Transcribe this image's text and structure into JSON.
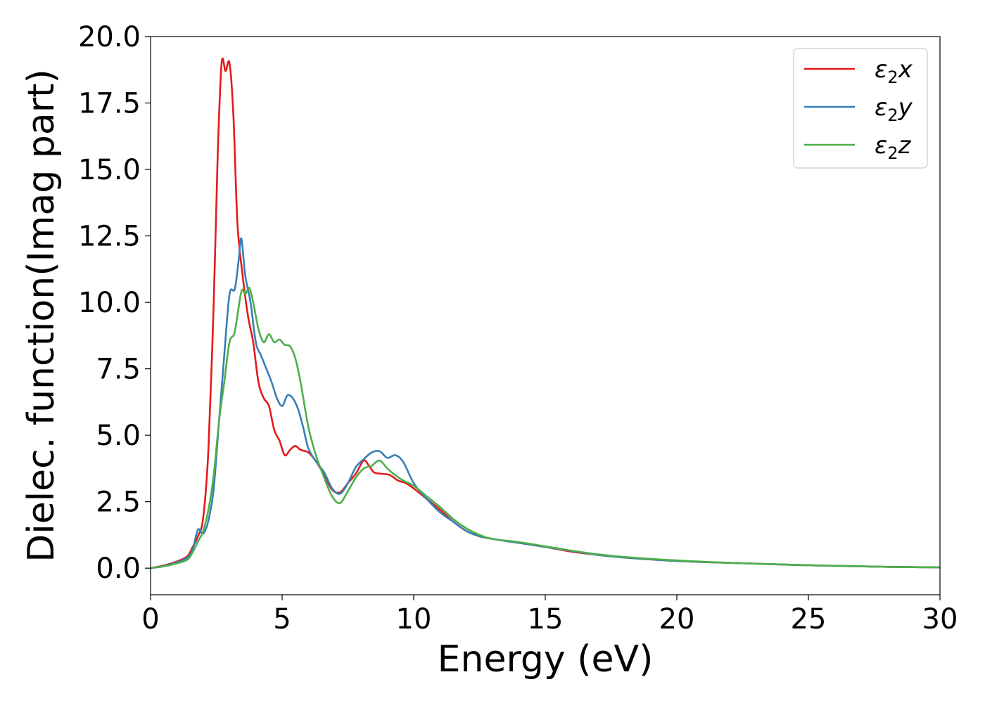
{
  "chart_data": {
    "type": "line",
    "xlabel": "Energy (eV)",
    "ylabel": "Dielec. function(Imag part)",
    "xlim": [
      0,
      30
    ],
    "ylim": [
      -1,
      20
    ],
    "xticks": [
      "0",
      "5",
      "10",
      "15",
      "20",
      "25",
      "30"
    ],
    "yticks": [
      "0.0",
      "2.5",
      "5.0",
      "7.5",
      "10.0",
      "12.5",
      "15.0",
      "17.5",
      "20.0"
    ],
    "grid": false,
    "legend_position": "top-right",
    "series": [
      {
        "name": "ε₂x",
        "legend": {
          "base": "ε",
          "sub": "2",
          "suffix": "x"
        },
        "color": "#e41a1c",
        "x": [
          0,
          0.5,
          1.0,
          1.4,
          1.6,
          1.8,
          2.0,
          2.2,
          2.4,
          2.55,
          2.7,
          2.85,
          3.0,
          3.15,
          3.3,
          3.5,
          3.7,
          3.9,
          4.1,
          4.3,
          4.5,
          4.7,
          4.9,
          5.1,
          5.3,
          5.5,
          5.7,
          6.0,
          6.3,
          6.6,
          6.9,
          7.2,
          7.5,
          7.8,
          8.1,
          8.3,
          8.5,
          8.8,
          9.1,
          9.4,
          9.7,
          10.0,
          10.5,
          11.0,
          11.5,
          12.0,
          12.5,
          13.0,
          14.0,
          15.0,
          16.0,
          17.0,
          18.0,
          20.0,
          22.0,
          25.0,
          28.0,
          30.0
        ],
        "y": [
          0.0,
          0.1,
          0.25,
          0.45,
          0.8,
          1.2,
          1.9,
          4.5,
          10.0,
          15.5,
          19.0,
          18.7,
          19.0,
          17.0,
          13.0,
          11.0,
          9.5,
          8.5,
          7.0,
          6.4,
          6.1,
          5.2,
          4.8,
          4.25,
          4.45,
          4.6,
          4.45,
          4.35,
          4.0,
          3.5,
          2.95,
          2.85,
          3.2,
          3.55,
          4.05,
          3.85,
          3.6,
          3.55,
          3.5,
          3.3,
          3.2,
          3.0,
          2.6,
          2.2,
          1.75,
          1.4,
          1.2,
          1.1,
          0.95,
          0.8,
          0.62,
          0.5,
          0.4,
          0.27,
          0.2,
          0.11,
          0.05,
          0.03
        ]
      },
      {
        "name": "ε₂y",
        "legend": {
          "base": "ε",
          "sub": "2",
          "suffix": "y"
        },
        "color": "#377eb8",
        "x": [
          0,
          0.5,
          1.0,
          1.4,
          1.6,
          1.8,
          2.0,
          2.2,
          2.4,
          2.6,
          2.8,
          3.0,
          3.2,
          3.35,
          3.45,
          3.6,
          3.8,
          4.0,
          4.2,
          4.4,
          4.6,
          4.8,
          5.0,
          5.2,
          5.4,
          5.6,
          5.8,
          6.0,
          6.3,
          6.6,
          6.9,
          7.2,
          7.5,
          7.8,
          8.1,
          8.4,
          8.7,
          9.0,
          9.3,
          9.6,
          10.0,
          10.5,
          11.0,
          11.5,
          12.0,
          12.5,
          13.0,
          14.0,
          15.0,
          16.0,
          17.0,
          18.0,
          20.0,
          22.0,
          25.0,
          28.0,
          30.0
        ],
        "y": [
          0.0,
          0.08,
          0.22,
          0.4,
          0.7,
          1.45,
          1.3,
          1.8,
          3.0,
          5.5,
          8.0,
          10.3,
          10.5,
          11.6,
          12.4,
          11.0,
          10.0,
          8.5,
          8.0,
          7.5,
          7.0,
          6.4,
          6.1,
          6.5,
          6.4,
          6.0,
          5.3,
          4.5,
          4.0,
          3.6,
          3.0,
          2.8,
          3.2,
          3.8,
          4.1,
          4.35,
          4.4,
          4.15,
          4.25,
          4.0,
          3.2,
          2.6,
          2.1,
          1.75,
          1.4,
          1.2,
          1.1,
          0.95,
          0.8,
          0.65,
          0.5,
          0.4,
          0.27,
          0.2,
          0.11,
          0.05,
          0.03
        ]
      },
      {
        "name": "ε₂z",
        "legend": {
          "base": "ε",
          "sub": "2",
          "suffix": "z"
        },
        "color": "#4daf4a",
        "x": [
          0,
          0.5,
          1.0,
          1.4,
          1.6,
          1.8,
          2.0,
          2.2,
          2.4,
          2.6,
          2.8,
          3.0,
          3.2,
          3.45,
          3.6,
          3.75,
          3.9,
          4.1,
          4.3,
          4.5,
          4.7,
          4.9,
          5.1,
          5.3,
          5.5,
          5.7,
          6.0,
          6.3,
          6.6,
          6.9,
          7.2,
          7.5,
          7.8,
          8.1,
          8.4,
          8.7,
          9.0,
          9.3,
          9.6,
          10.0,
          10.5,
          11.0,
          11.5,
          12.0,
          12.5,
          13.0,
          14.0,
          15.0,
          16.0,
          17.0,
          18.0,
          20.0,
          22.0,
          25.0,
          28.0,
          30.0
        ],
        "y": [
          0.0,
          0.07,
          0.18,
          0.32,
          0.6,
          1.0,
          1.4,
          2.2,
          3.5,
          5.5,
          7.0,
          8.5,
          8.9,
          10.4,
          10.3,
          10.55,
          10.0,
          9.0,
          8.5,
          8.8,
          8.5,
          8.6,
          8.4,
          8.35,
          7.9,
          7.0,
          5.3,
          4.2,
          3.4,
          2.7,
          2.45,
          2.9,
          3.4,
          3.75,
          3.85,
          4.05,
          3.75,
          3.5,
          3.3,
          3.1,
          2.7,
          2.3,
          1.85,
          1.5,
          1.25,
          1.1,
          0.98,
          0.82,
          0.66,
          0.52,
          0.42,
          0.29,
          0.2,
          0.11,
          0.05,
          0.03
        ]
      }
    ]
  }
}
